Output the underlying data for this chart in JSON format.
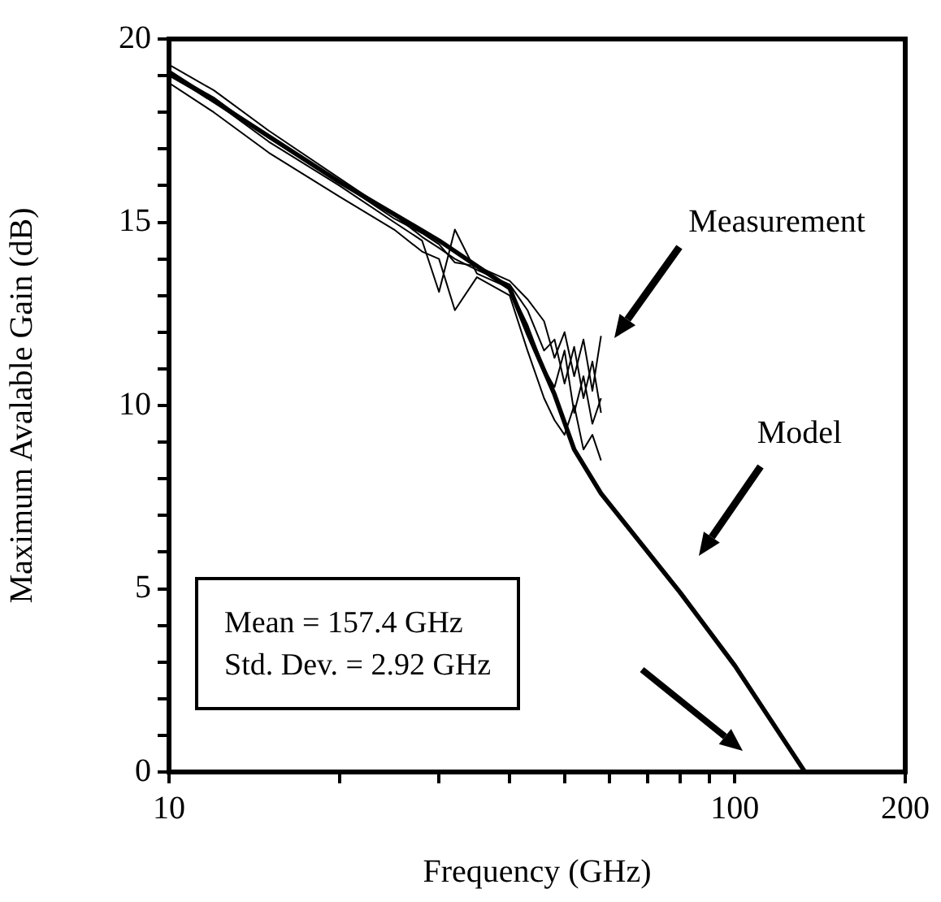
{
  "chart_data": {
    "type": "line",
    "xlabel": "Frequency (GHz)",
    "ylabel": "Maximum Avalable Gain (dB)",
    "log": "x",
    "grid": false,
    "xlim": [
      10,
      200
    ],
    "xticks": [
      10,
      {
        "value": 20,
        "label": null
      },
      {
        "value": 30,
        "label": null
      },
      {
        "value": 40,
        "label": null
      },
      {
        "value": 50,
        "label": null
      },
      {
        "value": 60,
        "label": null
      },
      {
        "value": 70,
        "label": null
      },
      {
        "value": 80,
        "label": null
      },
      {
        "value": 90,
        "label": null
      },
      100,
      200
    ],
    "ylim": [
      0,
      20
    ],
    "yticks": [
      0,
      {
        "value": 1,
        "label": null
      },
      {
        "value": 2,
        "label": null
      },
      {
        "value": 3,
        "label": null
      },
      {
        "value": 4,
        "label": null
      },
      5,
      {
        "value": 6,
        "label": null
      },
      {
        "value": 7,
        "label": null
      },
      {
        "value": 8,
        "label": null
      },
      {
        "value": 9,
        "label": null
      },
      10,
      {
        "value": 11,
        "label": null
      },
      {
        "value": 12,
        "label": null
      },
      {
        "value": 13,
        "label": null
      },
      {
        "value": 14,
        "label": null
      },
      15,
      {
        "value": 16,
        "label": null
      },
      {
        "value": 17,
        "label": null
      },
      {
        "value": 18,
        "label": null
      },
      {
        "value": 19,
        "label": null
      },
      20
    ],
    "x": [
      10,
      12,
      15,
      20,
      25,
      28,
      30,
      32,
      35,
      40,
      43,
      46,
      48,
      50,
      52,
      54,
      56,
      58
    ],
    "series": [
      {
        "color": "#000000",
        "values": [
          19.3,
          18.6,
          17.5,
          16.2,
          15.2,
          14.6,
          14.3,
          14.0,
          13.7,
          13.3,
          12.6,
          11.5,
          11.8,
          10.6,
          11.6,
          10.2,
          11.2,
          9.8
        ]
      },
      {
        "color": "#000000",
        "values": [
          19.0,
          18.3,
          17.2,
          16.0,
          15.0,
          14.5,
          13.1,
          14.8,
          13.6,
          13.2,
          12.2,
          11.0,
          10.5,
          11.5,
          9.8,
          10.8,
          9.5,
          10.2
        ]
      },
      {
        "color": "#000000",
        "values": [
          18.8,
          18.0,
          16.9,
          15.7,
          14.8,
          14.2,
          14.0,
          12.6,
          13.5,
          13.0,
          11.5,
          10.2,
          9.6,
          9.2,
          10.0,
          8.8,
          9.2,
          8.5
        ]
      },
      {
        "color": "#000000",
        "values": [
          19.1,
          18.4,
          17.3,
          16.1,
          15.1,
          14.7,
          14.4,
          13.9,
          13.8,
          13.4,
          12.9,
          12.3,
          11.3,
          12.0,
          10.8,
          11.8,
          10.4,
          11.9
        ]
      },
      {
        "color": "#000000",
        "x": [
          10,
          20,
          30,
          40,
          43,
          48,
          52,
          58,
          80,
          100,
          133
        ],
        "values": [
          19.1,
          16.1,
          14.5,
          13.2,
          12.0,
          10.3,
          8.8,
          7.6,
          4.9,
          2.9,
          0
        ]
      }
    ],
    "annotations": [
      "Measurement",
      "Model",
      "Mean = 157.4 GHz",
      "Std. Dev. = 2.92 GHz"
    ]
  }
}
